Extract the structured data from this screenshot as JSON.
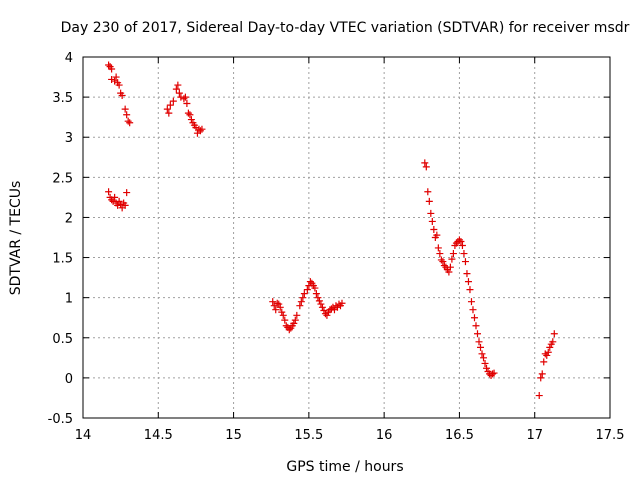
{
  "chart_data": {
    "type": "scatter",
    "title": "Day 230 of 2017, Sidereal Day-to-day VTEC variation (SDTVAR) for receiver msdr",
    "xlabel": "GPS time / hours",
    "ylabel": "SDTVAR / TECUs",
    "xlim": [
      14,
      17.5
    ],
    "ylim": [
      -0.5,
      4
    ],
    "x_ticks": [
      14,
      14.5,
      15,
      15.5,
      16,
      16.5,
      17,
      17.5
    ],
    "x_tick_labels": [
      "14",
      "14.5",
      "15",
      "15.5",
      "16",
      "16.5",
      "17",
      "17.5"
    ],
    "y_ticks": [
      -0.5,
      0,
      0.5,
      1,
      1.5,
      2,
      2.5,
      3,
      3.5,
      4
    ],
    "y_tick_labels": [
      "-0.5",
      "0",
      "0.5",
      "1",
      "1.5",
      "2",
      "2.5",
      "3",
      "3.5",
      "4"
    ],
    "grid": true,
    "marker": "+",
    "marker_color": "#e00000",
    "series": [
      {
        "name": "SDTVAR",
        "points": [
          [
            14.17,
            3.9
          ],
          [
            14.18,
            3.88
          ],
          [
            14.19,
            3.85
          ],
          [
            14.19,
            3.72
          ],
          [
            14.21,
            3.7
          ],
          [
            14.22,
            3.75
          ],
          [
            14.23,
            3.68
          ],
          [
            14.24,
            3.65
          ],
          [
            14.25,
            3.55
          ],
          [
            14.26,
            3.52
          ],
          [
            14.28,
            3.35
          ],
          [
            14.29,
            3.28
          ],
          [
            14.3,
            3.2
          ],
          [
            14.31,
            3.18
          ],
          [
            14.17,
            2.32
          ],
          [
            14.18,
            2.25
          ],
          [
            14.19,
            2.22
          ],
          [
            14.2,
            2.2
          ],
          [
            14.21,
            2.25
          ],
          [
            14.22,
            2.18
          ],
          [
            14.23,
            2.15
          ],
          [
            14.24,
            2.2
          ],
          [
            14.25,
            2.16
          ],
          [
            14.26,
            2.12
          ],
          [
            14.27,
            2.18
          ],
          [
            14.28,
            2.15
          ],
          [
            14.29,
            2.31
          ],
          [
            14.56,
            3.35
          ],
          [
            14.57,
            3.3
          ],
          [
            14.58,
            3.4
          ],
          [
            14.6,
            3.45
          ],
          [
            14.62,
            3.6
          ],
          [
            14.63,
            3.65
          ],
          [
            14.64,
            3.55
          ],
          [
            14.65,
            3.5
          ],
          [
            14.67,
            3.48
          ],
          [
            14.68,
            3.5
          ],
          [
            14.69,
            3.42
          ],
          [
            14.7,
            3.3
          ],
          [
            14.71,
            3.28
          ],
          [
            14.72,
            3.22
          ],
          [
            14.73,
            3.18
          ],
          [
            14.74,
            3.15
          ],
          [
            14.75,
            3.12
          ],
          [
            14.76,
            3.05
          ],
          [
            14.77,
            3.1
          ],
          [
            14.78,
            3.08
          ],
          [
            14.79,
            3.1
          ],
          [
            15.26,
            0.95
          ],
          [
            15.27,
            0.9
          ],
          [
            15.28,
            0.85
          ],
          [
            15.29,
            0.93
          ],
          [
            15.3,
            0.92
          ],
          [
            15.31,
            0.88
          ],
          [
            15.32,
            0.82
          ],
          [
            15.33,
            0.78
          ],
          [
            15.34,
            0.72
          ],
          [
            15.35,
            0.65
          ],
          [
            15.36,
            0.63
          ],
          [
            15.37,
            0.6
          ],
          [
            15.38,
            0.62
          ],
          [
            15.39,
            0.65
          ],
          [
            15.4,
            0.68
          ],
          [
            15.41,
            0.72
          ],
          [
            15.42,
            0.78
          ],
          [
            15.44,
            0.9
          ],
          [
            15.45,
            0.95
          ],
          [
            15.46,
            1.0
          ],
          [
            15.47,
            1.05
          ],
          [
            15.49,
            1.1
          ],
          [
            15.5,
            1.15
          ],
          [
            15.51,
            1.2
          ],
          [
            15.52,
            1.18
          ],
          [
            15.53,
            1.15
          ],
          [
            15.54,
            1.12
          ],
          [
            15.55,
            1.05
          ],
          [
            15.56,
            1.0
          ],
          [
            15.57,
            0.96
          ],
          [
            15.58,
            0.92
          ],
          [
            15.59,
            0.88
          ],
          [
            15.6,
            0.84
          ],
          [
            15.61,
            0.8
          ],
          [
            15.62,
            0.78
          ],
          [
            15.63,
            0.82
          ],
          [
            15.64,
            0.85
          ],
          [
            15.65,
            0.86
          ],
          [
            15.66,
            0.88
          ],
          [
            15.67,
            0.85
          ],
          [
            15.68,
            0.9
          ],
          [
            15.69,
            0.88
          ],
          [
            15.7,
            0.92
          ],
          [
            15.71,
            0.9
          ],
          [
            15.72,
            0.93
          ],
          [
            16.27,
            2.68
          ],
          [
            16.28,
            2.63
          ],
          [
            16.29,
            2.32
          ],
          [
            16.3,
            2.2
          ],
          [
            16.31,
            2.05
          ],
          [
            16.32,
            1.95
          ],
          [
            16.33,
            1.85
          ],
          [
            16.34,
            1.75
          ],
          [
            16.35,
            1.78
          ],
          [
            16.36,
            1.62
          ],
          [
            16.37,
            1.55
          ],
          [
            16.38,
            1.47
          ],
          [
            16.39,
            1.45
          ],
          [
            16.4,
            1.4
          ],
          [
            16.41,
            1.38
          ],
          [
            16.42,
            1.35
          ],
          [
            16.43,
            1.32
          ],
          [
            16.44,
            1.38
          ],
          [
            16.45,
            1.48
          ],
          [
            16.46,
            1.55
          ],
          [
            16.47,
            1.65
          ],
          [
            16.48,
            1.68
          ],
          [
            16.49,
            1.7
          ],
          [
            16.5,
            1.72
          ],
          [
            16.51,
            1.7
          ],
          [
            16.52,
            1.65
          ],
          [
            16.53,
            1.55
          ],
          [
            16.54,
            1.45
          ],
          [
            16.55,
            1.3
          ],
          [
            16.56,
            1.2
          ],
          [
            16.57,
            1.1
          ],
          [
            16.58,
            0.95
          ],
          [
            16.59,
            0.85
          ],
          [
            16.6,
            0.75
          ],
          [
            16.61,
            0.65
          ],
          [
            16.62,
            0.55
          ],
          [
            16.63,
            0.45
          ],
          [
            16.64,
            0.38
          ],
          [
            16.65,
            0.3
          ],
          [
            16.66,
            0.25
          ],
          [
            16.67,
            0.18
          ],
          [
            16.68,
            0.12
          ],
          [
            16.69,
            0.08
          ],
          [
            16.7,
            0.05
          ],
          [
            16.71,
            0.03
          ],
          [
            16.72,
            0.05
          ],
          [
            16.73,
            0.06
          ],
          [
            17.03,
            -0.22
          ],
          [
            17.04,
            0.0
          ],
          [
            17.05,
            0.05
          ],
          [
            17.06,
            0.2
          ],
          [
            17.07,
            0.3
          ],
          [
            17.08,
            0.28
          ],
          [
            17.09,
            0.32
          ],
          [
            17.1,
            0.38
          ],
          [
            17.11,
            0.42
          ],
          [
            17.12,
            0.45
          ],
          [
            17.13,
            0.55
          ]
        ]
      }
    ]
  }
}
